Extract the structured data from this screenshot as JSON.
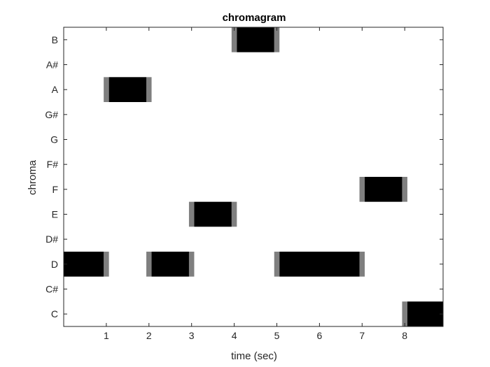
{
  "chart_data": {
    "type": "heatmap",
    "title": "chromagram",
    "xlabel": "time (sec)",
    "ylabel": "chroma",
    "xlim": [
      0,
      8.9
    ],
    "x_ticks": [
      1,
      2,
      3,
      4,
      5,
      6,
      7,
      8
    ],
    "y_categories": [
      "C",
      "C#",
      "D",
      "D#",
      "E",
      "F",
      "F#",
      "G",
      "G#",
      "A",
      "A#",
      "B"
    ],
    "colormap": "gray-reversed",
    "grid": false,
    "notes": [
      {
        "chroma": "D",
        "start": 0.0,
        "end": 1.0
      },
      {
        "chroma": "A",
        "start": 1.0,
        "end": 2.0
      },
      {
        "chroma": "D",
        "start": 2.0,
        "end": 3.0
      },
      {
        "chroma": "E",
        "start": 3.0,
        "end": 4.0
      },
      {
        "chroma": "B",
        "start": 4.0,
        "end": 5.0
      },
      {
        "chroma": "D",
        "start": 5.0,
        "end": 7.0
      },
      {
        "chroma": "F",
        "start": 7.0,
        "end": 8.0
      },
      {
        "chroma": "C",
        "start": 8.0,
        "end": 8.9
      }
    ],
    "colors": {
      "cell_on": "#000000",
      "cell_edge": "#7f7f7f",
      "axis": "#262626",
      "background": "#ffffff"
    }
  }
}
